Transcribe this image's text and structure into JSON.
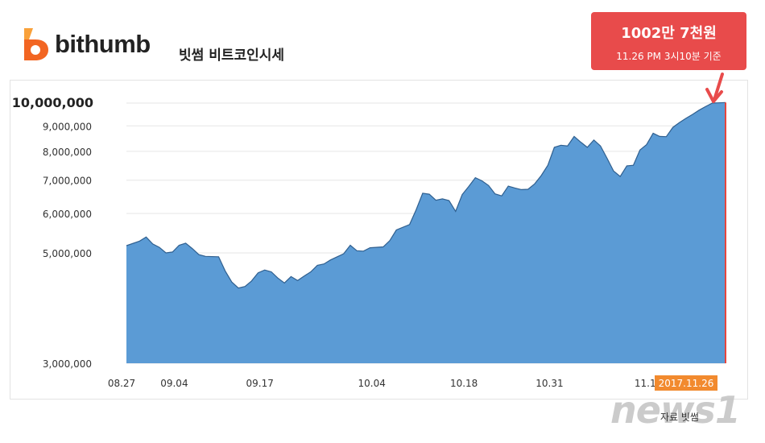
{
  "header": {
    "brand_name": "bithumb",
    "chart_title": "빗썸 비트코인시세"
  },
  "callout": {
    "value_text": "1002만 7천원",
    "time_text": "11.26 PM 3시10분 기준"
  },
  "footer": {
    "watermark": "news1",
    "source": "자료 빗썸"
  },
  "colors": {
    "area_fill": "#5b9bd5",
    "area_line": "#2f5f8f",
    "grid": "#e6e6e6",
    "callout_bg": "#e84b4b",
    "highlight_line": "#e8453c",
    "date_badge": "#f28a2e",
    "brand_orange": "#f26522"
  },
  "chart_data": {
    "type": "area",
    "xlabel": "",
    "ylabel": "",
    "y_scale": "log",
    "ylim": [
      3000000,
      10000000
    ],
    "grid": true,
    "y_ticks": [
      {
        "value": 10000000,
        "label": "10,000,000",
        "bold": true
      },
      {
        "value": 9000000,
        "label": "9,000,000"
      },
      {
        "value": 8000000,
        "label": "8,000,000"
      },
      {
        "value": 7000000,
        "label": "7,000,000"
      },
      {
        "value": 6000000,
        "label": "6,000,000"
      },
      {
        "value": 5000000,
        "label": "5,000,000"
      },
      {
        "value": 3000000,
        "label": "3,000,000"
      }
    ],
    "x_ticks": [
      {
        "date": "2017-08-27",
        "label": "08.27"
      },
      {
        "date": "2017-09-04",
        "label": "09.04"
      },
      {
        "date": "2017-09-17",
        "label": "09.17"
      },
      {
        "date": "2017-10-04",
        "label": "10.04"
      },
      {
        "date": "2017-10-18",
        "label": "10.18"
      },
      {
        "date": "2017-10-31",
        "label": "10.31"
      },
      {
        "date": "2017-11-15",
        "label": "11.15"
      }
    ],
    "highlight_tick": {
      "date": "2017-11-26",
      "label": "2017.11.26"
    },
    "x_range": [
      "2017-08-27",
      "2017-11-26"
    ],
    "points": [
      [
        "2017-08-27",
        5170000
      ],
      [
        "2017-08-29",
        5280000
      ],
      [
        "2017-08-30",
        5380000
      ],
      [
        "2017-08-31",
        5210000
      ],
      [
        "2017-09-01",
        5130000
      ],
      [
        "2017-09-02",
        5000000
      ],
      [
        "2017-09-03",
        5020000
      ],
      [
        "2017-09-04",
        5180000
      ],
      [
        "2017-09-05",
        5230000
      ],
      [
        "2017-09-06",
        5100000
      ],
      [
        "2017-09-07",
        4960000
      ],
      [
        "2017-09-08",
        4920000
      ],
      [
        "2017-09-10",
        4910000
      ],
      [
        "2017-09-11",
        4600000
      ],
      [
        "2017-09-12",
        4370000
      ],
      [
        "2017-09-13",
        4250000
      ],
      [
        "2017-09-14",
        4280000
      ],
      [
        "2017-09-15",
        4390000
      ],
      [
        "2017-09-16",
        4560000
      ],
      [
        "2017-09-17",
        4620000
      ],
      [
        "2017-09-18",
        4580000
      ],
      [
        "2017-09-19",
        4450000
      ],
      [
        "2017-09-20",
        4350000
      ],
      [
        "2017-09-21",
        4480000
      ],
      [
        "2017-09-22",
        4400000
      ],
      [
        "2017-09-23",
        4490000
      ],
      [
        "2017-09-24",
        4580000
      ],
      [
        "2017-09-25",
        4720000
      ],
      [
        "2017-09-26",
        4750000
      ],
      [
        "2017-09-27",
        4840000
      ],
      [
        "2017-09-29",
        4980000
      ],
      [
        "2017-09-30",
        5180000
      ],
      [
        "2017-10-01",
        5050000
      ],
      [
        "2017-10-02",
        5040000
      ],
      [
        "2017-10-03",
        5120000
      ],
      [
        "2017-10-05",
        5140000
      ],
      [
        "2017-10-06",
        5290000
      ],
      [
        "2017-10-07",
        5560000
      ],
      [
        "2017-10-09",
        5700000
      ],
      [
        "2017-10-10",
        6100000
      ],
      [
        "2017-10-11",
        6590000
      ],
      [
        "2017-10-12",
        6560000
      ],
      [
        "2017-10-13",
        6380000
      ],
      [
        "2017-10-14",
        6420000
      ],
      [
        "2017-10-15",
        6370000
      ],
      [
        "2017-10-16",
        6060000
      ],
      [
        "2017-10-17",
        6550000
      ],
      [
        "2017-10-18",
        6800000
      ],
      [
        "2017-10-19",
        7080000
      ],
      [
        "2017-10-20",
        6980000
      ],
      [
        "2017-10-21",
        6830000
      ],
      [
        "2017-10-22",
        6570000
      ],
      [
        "2017-10-23",
        6510000
      ],
      [
        "2017-10-24",
        6810000
      ],
      [
        "2017-10-25",
        6750000
      ],
      [
        "2017-10-26",
        6700000
      ],
      [
        "2017-10-27",
        6710000
      ],
      [
        "2017-10-28",
        6880000
      ],
      [
        "2017-10-29",
        7150000
      ],
      [
        "2017-10-30",
        7500000
      ],
      [
        "2017-10-31",
        8150000
      ],
      [
        "2017-11-01",
        8230000
      ],
      [
        "2017-11-02",
        8200000
      ],
      [
        "2017-11-03",
        8570000
      ],
      [
        "2017-11-04",
        8350000
      ],
      [
        "2017-11-05",
        8150000
      ],
      [
        "2017-11-06",
        8430000
      ],
      [
        "2017-11-07",
        8200000
      ],
      [
        "2017-11-08",
        7750000
      ],
      [
        "2017-11-09",
        7300000
      ],
      [
        "2017-11-10",
        7120000
      ],
      [
        "2017-11-11",
        7480000
      ],
      [
        "2017-11-12",
        7500000
      ],
      [
        "2017-11-13",
        8050000
      ],
      [
        "2017-11-14",
        8250000
      ],
      [
        "2017-11-15",
        8700000
      ],
      [
        "2017-11-16",
        8570000
      ],
      [
        "2017-11-17",
        8560000
      ],
      [
        "2017-11-18",
        8940000
      ],
      [
        "2017-11-19",
        9140000
      ],
      [
        "2017-11-20",
        9320000
      ],
      [
        "2017-11-21",
        9490000
      ],
      [
        "2017-11-22",
        9680000
      ],
      [
        "2017-11-23",
        9850000
      ],
      [
        "2017-11-24",
        10000000
      ],
      [
        "2017-11-26",
        10027000
      ]
    ]
  }
}
